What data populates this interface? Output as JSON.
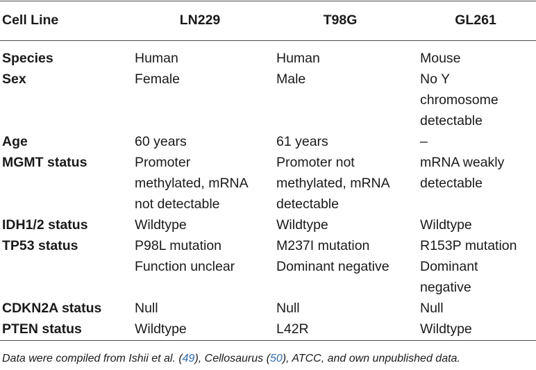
{
  "header": [
    "Cell Line",
    "LN229",
    "T98G",
    "GL261"
  ],
  "rows": [
    {
      "label": "Species",
      "c1": "Human",
      "c2": "Human",
      "c3": "Mouse"
    },
    {
      "label": "Sex",
      "c1": "Female",
      "c2": "Male",
      "c3": "No Y\nchromosome\ndetectable"
    },
    {
      "label": "Age",
      "c1": "60 years",
      "c2": "61 years",
      "c3": "–"
    },
    {
      "label": "MGMT status",
      "c1": "Promoter\nmethylated, mRNA\nnot detectable",
      "c2": "Promoter not\nmethylated, mRNA\ndetectable",
      "c3": "mRNA weakly\ndetectable"
    },
    {
      "label": "IDH1/2 status",
      "c1": "Wildtype",
      "c2": "Wildtype",
      "c3": "Wildtype"
    },
    {
      "label": "TP53 status",
      "c1": "P98L mutation\nFunction unclear",
      "c2": "M237I mutation\nDominant negative",
      "c3": "R153P mutation\nDominant\nnegative"
    },
    {
      "label": "CDKN2A status",
      "c1": "Null",
      "c2": "Null",
      "c3": "Null"
    },
    {
      "label": "PTEN status",
      "c1": "Wildtype",
      "c2": "L42R",
      "c3": "Wildtype"
    }
  ],
  "footnote": {
    "t1": "Data were compiled from Ishii et al. (",
    "ref1": "49",
    "t2": "), Cellosaurus (",
    "ref2": "50",
    "t3": "), ATCC, and own unpublished data."
  }
}
